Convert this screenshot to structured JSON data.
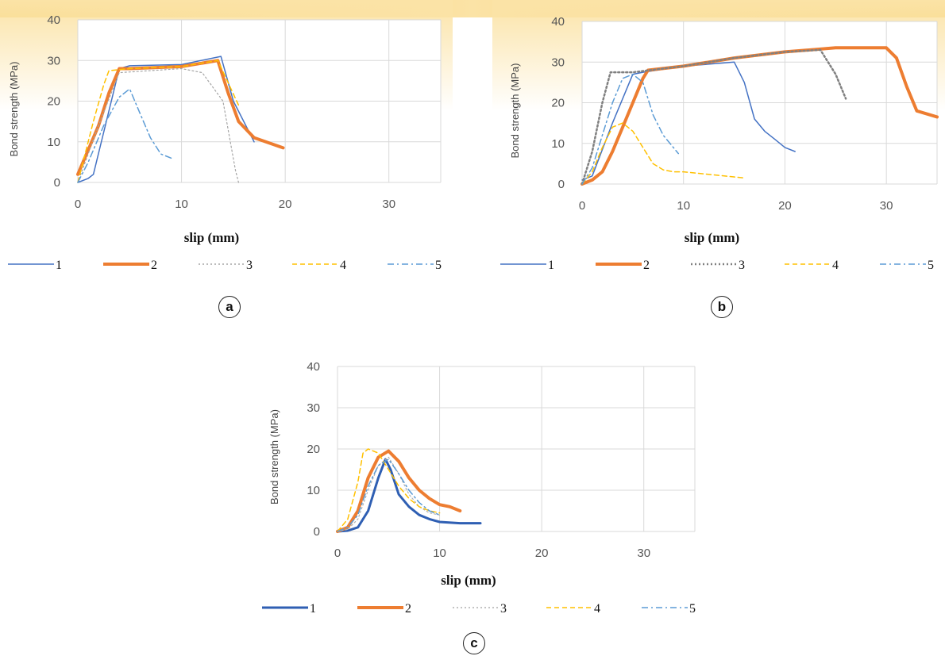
{
  "panel_labels": [
    "a",
    "b",
    "c"
  ],
  "chart_data": [
    {
      "panel": "a",
      "type": "line",
      "xlabel": "slip (mm)",
      "ylabel": "Bond strength (MPa)",
      "xlim": [
        0,
        35
      ],
      "ylim": [
        0,
        40
      ],
      "xticks": [
        0,
        10,
        20,
        30
      ],
      "yticks": [
        0,
        10,
        20,
        30,
        40
      ],
      "grid": "vertical and horizontal",
      "legend_position": "bottom",
      "series": [
        {
          "name": "1",
          "color": "#4472c4",
          "style": "solid",
          "width": 1.5,
          "x": [
            0,
            1,
            1.5,
            4,
            5,
            10,
            13.8,
            15,
            17
          ],
          "y": [
            0,
            1,
            2,
            28,
            28.7,
            29,
            31,
            20,
            10
          ]
        },
        {
          "name": "2",
          "color": "#ed7d31",
          "style": "solid",
          "width": 4,
          "x": [
            0,
            1,
            2,
            3,
            4,
            5,
            10,
            13.5,
            14.5,
            15.5,
            17,
            19.8
          ],
          "y": [
            2,
            8,
            14,
            22,
            28,
            28,
            28.5,
            30,
            22,
            15,
            11,
            8.5
          ]
        },
        {
          "name": "3",
          "color": "#a5a5a5",
          "style": "dotted",
          "width": 1.2,
          "x": [
            0,
            2,
            4,
            10,
            12,
            14,
            15.2,
            15.5
          ],
          "y": [
            0,
            14,
            27,
            28,
            27,
            20,
            3,
            0
          ]
        },
        {
          "name": "4",
          "color": "#ffc000",
          "style": "dashed",
          "width": 1.5,
          "x": [
            0,
            1.5,
            2.5,
            3,
            5,
            10,
            13.5,
            15.5
          ],
          "y": [
            0,
            15,
            24,
            27.5,
            28,
            28.5,
            30,
            19
          ]
        },
        {
          "name": "5",
          "color": "#5b9bd5",
          "style": "dashdot",
          "width": 1.5,
          "x": [
            0,
            1,
            2.5,
            4,
            5,
            6,
            7,
            8,
            9
          ],
          "y": [
            0,
            5,
            14,
            21,
            23,
            17,
            11,
            7,
            6
          ]
        }
      ]
    },
    {
      "panel": "b",
      "type": "line",
      "xlabel": "slip (mm)",
      "ylabel": "Bond strength (MPa)",
      "xlim": [
        0,
        35
      ],
      "ylim": [
        0,
        40
      ],
      "xticks": [
        0,
        10,
        20,
        30
      ],
      "yticks": [
        0,
        10,
        20,
        30,
        40
      ],
      "grid": "vertical and horizontal",
      "legend_position": "bottom",
      "series": [
        {
          "name": "1",
          "color": "#4472c4",
          "style": "solid",
          "width": 1.5,
          "x": [
            0,
            1,
            3,
            5,
            6,
            10,
            15,
            16,
            17,
            18,
            19,
            20,
            21
          ],
          "y": [
            1,
            2,
            15,
            27,
            27.5,
            29,
            30,
            25,
            16,
            13,
            11,
            9,
            8
          ]
        },
        {
          "name": "2",
          "color": "#ed7d31",
          "style": "solid",
          "width": 4,
          "x": [
            0,
            1,
            2,
            3,
            4,
            5,
            6,
            6.5,
            10,
            15,
            20,
            25,
            30,
            31,
            32,
            33,
            35
          ],
          "y": [
            0,
            1,
            3,
            8,
            14,
            20,
            26,
            28,
            29,
            31,
            32.5,
            33.5,
            33.5,
            31,
            24,
            18,
            16.5
          ]
        },
        {
          "name": "3",
          "color": "#808080",
          "style": "dotted",
          "width": 2.5,
          "x": [
            0,
            1,
            2,
            2.8,
            5,
            10,
            15,
            20,
            23.5,
            25,
            26
          ],
          "y": [
            0,
            8,
            20,
            27.5,
            27.5,
            29,
            31,
            32.5,
            33,
            27,
            21
          ]
        },
        {
          "name": "4",
          "color": "#ffc000",
          "style": "dashed",
          "width": 1.5,
          "x": [
            0,
            1,
            2,
            3,
            4,
            5,
            6,
            7,
            8,
            9,
            10,
            12,
            14,
            16
          ],
          "y": [
            0,
            3,
            9,
            14,
            15,
            13,
            9,
            5,
            3.5,
            3,
            3,
            2.5,
            2,
            1.5
          ]
        },
        {
          "name": "5",
          "color": "#5b9bd5",
          "style": "dashdot",
          "width": 1.5,
          "x": [
            0,
            1,
            2,
            3,
            4,
            5,
            6,
            7,
            8,
            9,
            9.5
          ],
          "y": [
            0,
            4,
            12,
            20,
            26,
            27,
            25,
            17,
            12,
            9,
            7.5
          ]
        }
      ]
    },
    {
      "panel": "c",
      "type": "line",
      "xlabel": "slip (mm)",
      "ylabel": "Bond strength (MPa)",
      "xlim": [
        0,
        35
      ],
      "ylim": [
        0,
        40
      ],
      "xticks": [
        0,
        10,
        20,
        30
      ],
      "yticks": [
        0,
        10,
        20,
        30,
        40
      ],
      "grid": "vertical and horizontal",
      "legend_position": "bottom",
      "series": [
        {
          "name": "1",
          "color": "#2f5fb3",
          "style": "solid",
          "width": 3,
          "x": [
            0,
            1,
            2,
            3,
            4,
            4.7,
            5.2,
            6,
            7,
            8,
            9,
            10,
            12,
            14
          ],
          "y": [
            0,
            0.2,
            1,
            5,
            13,
            17.5,
            15,
            9,
            6,
            4,
            3,
            2.3,
            2,
            2
          ]
        },
        {
          "name": "2",
          "color": "#ed7d31",
          "style": "solid",
          "width": 4,
          "x": [
            0,
            1,
            2,
            3,
            4,
            5,
            6,
            7,
            8,
            9,
            10,
            11,
            12
          ],
          "y": [
            0,
            1,
            5,
            13,
            18,
            19.5,
            17,
            13,
            10,
            8,
            6.5,
            6,
            5
          ]
        },
        {
          "name": "3",
          "color": "#b0b0b0",
          "style": "dotted",
          "width": 1.2,
          "x": [
            0,
            1,
            2,
            3,
            4,
            5,
            6,
            7,
            8,
            9,
            10
          ],
          "y": [
            0,
            0.5,
            3,
            10,
            16,
            18,
            14,
            9,
            6,
            4.5,
            4
          ]
        },
        {
          "name": "4",
          "color": "#ffc000",
          "style": "dashed",
          "width": 1.5,
          "x": [
            0,
            1,
            2,
            2.5,
            3,
            4,
            5,
            6,
            7,
            8,
            9,
            10
          ],
          "y": [
            0,
            3,
            12,
            19,
            20,
            19,
            15,
            11,
            8,
            6,
            5,
            4.5
          ]
        },
        {
          "name": "5",
          "color": "#5b9bd5",
          "style": "dashdot",
          "width": 1.5,
          "x": [
            0,
            1,
            2,
            3,
            4,
            5,
            6,
            7,
            8,
            9,
            10
          ],
          "y": [
            0,
            1,
            4,
            11,
            16,
            17.5,
            14,
            10,
            7,
            5,
            4
          ]
        }
      ]
    }
  ]
}
